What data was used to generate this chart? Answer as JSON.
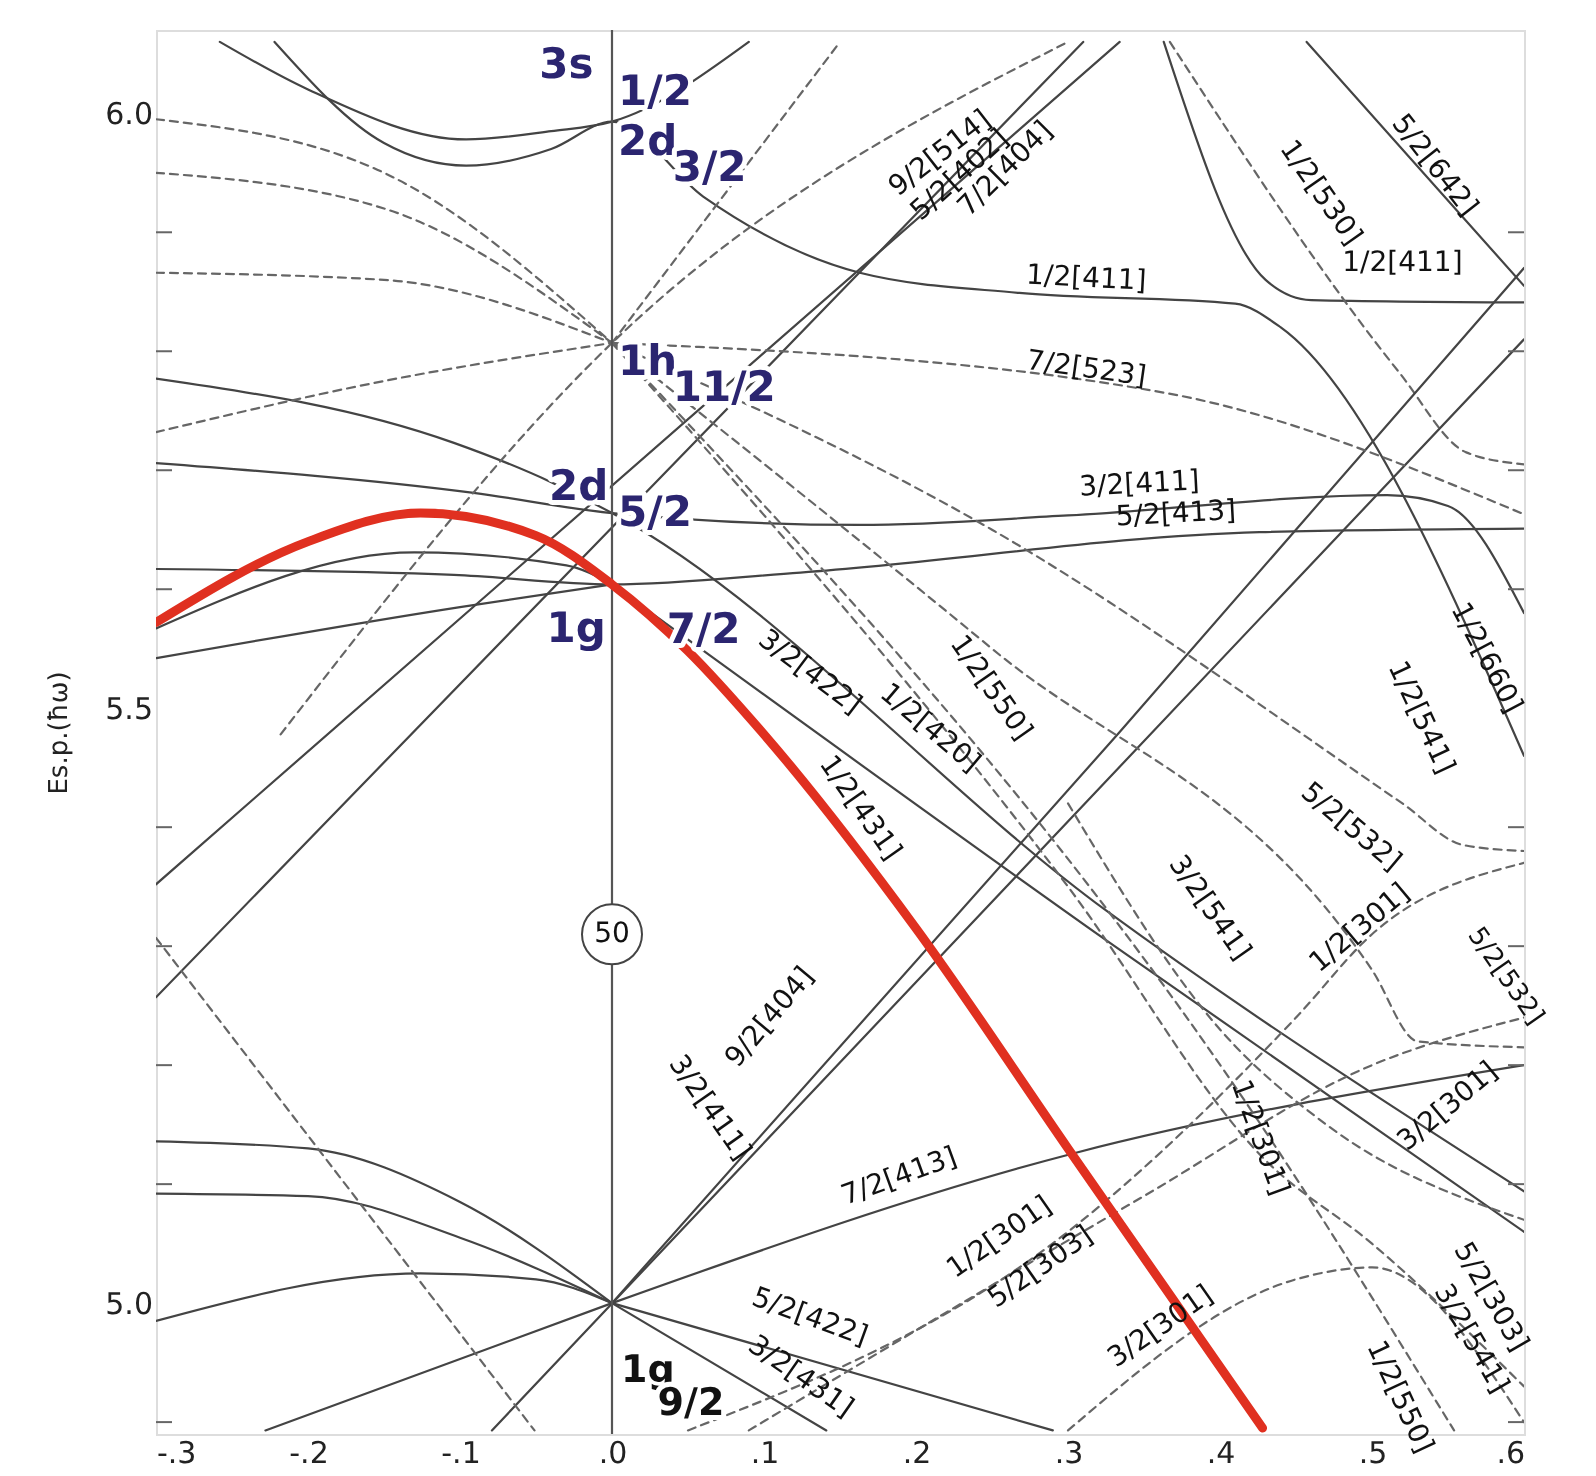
{
  "chart_data": {
    "type": "line",
    "ylabel": "Es.p.(ħω)",
    "grid": false,
    "xlim": [
      -0.3,
      0.6
    ],
    "ylim": [
      4.89,
      6.07
    ],
    "xticks": [
      {
        "value": -0.3,
        "label": "-.3"
      },
      {
        "value": -0.2,
        "label": "-.2"
      },
      {
        "value": -0.1,
        "label": "-.1"
      },
      {
        "value": 0,
        "label": ".0"
      },
      {
        "value": 0.1,
        "label": ".1"
      },
      {
        "value": 0.2,
        "label": ".2"
      },
      {
        "value": 0.3,
        "label": ".3"
      },
      {
        "value": 0.4,
        "label": ".4"
      },
      {
        "value": 0.5,
        "label": ".5"
      },
      {
        "value": 0.6,
        "label": ".6"
      }
    ],
    "yticks": [
      {
        "value": 6.0,
        "label": "6.0"
      },
      {
        "value": 5.9,
        "label": null
      },
      {
        "value": 5.8,
        "label": null
      },
      {
        "value": 5.7,
        "label": null
      },
      {
        "value": 5.6,
        "label": null
      },
      {
        "value": 5.5,
        "label": "5.5"
      },
      {
        "value": 5.4,
        "label": null
      },
      {
        "value": 5.3,
        "label": null
      },
      {
        "value": 5.2,
        "label": null
      },
      {
        "value": 5.1,
        "label": null
      },
      {
        "value": 5.0,
        "label": "5.0"
      },
      {
        "value": 4.9,
        "label": null
      }
    ],
    "ref_lines": [
      {
        "axis": "x",
        "value": 0,
        "color": "#555555",
        "line_style": "solid"
      }
    ],
    "series": [
      {
        "color": "#e03020",
        "line_style": "solid",
        "x": [
          -0.3,
          -0.2,
          -0.126,
          -0.05,
          0,
          0.05,
          0.1,
          0.2,
          0.3,
          0.428
        ],
        "values": [
          5.572,
          5.64,
          5.664,
          5.645,
          5.604,
          5.548,
          5.478,
          5.315,
          5.13,
          4.895
        ]
      },
      {
        "color": "#444444",
        "line_style": "solid",
        "x": [
          -0.258,
          -0.2,
          -0.096,
          -0.04,
          0,
          0.09
        ],
        "values": [
          6.06,
          6.02,
          5.978,
          5.985,
          5.993,
          6.06
        ]
      },
      {
        "color": "#444444",
        "line_style": "solid",
        "x": [
          -0.222,
          -0.15,
          -0.096,
          -0.04,
          0,
          0.06,
          0.163,
          0.268,
          0.41,
          0.44,
          0.6
        ],
        "values": [
          6.06,
          5.975,
          5.956,
          5.97,
          5.993,
          5.93,
          5.866,
          5.849,
          5.84,
          5.82,
          5.46
        ]
      },
      {
        "color": "#444444",
        "line_style": "solid",
        "x": [
          0.363,
          0.43,
          0.46,
          0.6
        ],
        "values": [
          6.06,
          5.86,
          5.843,
          5.841
        ]
      },
      {
        "color": "#444444",
        "line_style": "solid",
        "x": [
          0.457,
          0.6
        ],
        "values": [
          6.06,
          5.855
        ]
      },
      {
        "color": "#666666",
        "line_style": "dashed",
        "x": [
          0.367,
          0.518,
          0.562,
          0.6
        ],
        "values": [
          6.06,
          5.782,
          5.715,
          5.705
        ]
      },
      {
        "color": "#444444",
        "line_style": "solid",
        "x": [
          -0.3,
          -0.091,
          0,
          0.163,
          0.3,
          0.51,
          0.55,
          0.6
        ],
        "values": [
          5.706,
          5.681,
          5.664,
          5.654,
          5.662,
          5.679,
          5.67,
          5.58
        ]
      },
      {
        "color": "#444444",
        "line_style": "solid",
        "x": [
          -0.3,
          -0.104,
          0,
          0.124,
          0.426,
          0.6
        ],
        "values": [
          5.617,
          5.612,
          5.604,
          5.614,
          5.648,
          5.651
        ]
      },
      {
        "color": "#444444",
        "line_style": "solid",
        "x": [
          -0.3,
          -0.104,
          -0.04,
          0,
          0.325,
          0.6
        ],
        "values": [
          5.777,
          5.723,
          5.69,
          5.664,
          5.33,
          5.094
        ]
      },
      {
        "color": "#444444",
        "line_style": "solid",
        "x": [
          0,
          0.325,
          0.6
        ],
        "values": [
          5.604,
          5.305,
          5.06
        ]
      },
      {
        "color": "#444444",
        "line_style": "solid",
        "x": [
          -0.3,
          -0.13,
          -0.03,
          0
        ],
        "values": [
          5.567,
          5.631,
          5.62,
          5.604
        ]
      },
      {
        "color": "#444444",
        "line_style": "solid",
        "x": [
          -0.3,
          -0.1,
          0
        ],
        "values": [
          5.542,
          5.585,
          5.604
        ]
      },
      {
        "color": "#444444",
        "line_style": "solid",
        "x": [
          -0.3,
          0.334
        ],
        "values": [
          5.352,
          6.06
        ]
      },
      {
        "color": "#444444",
        "line_style": "solid",
        "x": [
          -0.3,
          0.31
        ],
        "values": [
          5.257,
          6.06
        ]
      },
      {
        "color": "#444444",
        "line_style": "solid",
        "x": [
          0,
          0.334,
          0.6
        ],
        "values": [
          5.0,
          5.48,
          5.87
        ]
      },
      {
        "color": "#444444",
        "line_style": "solid",
        "x": [
          -0.079,
          0.6
        ],
        "values": [
          4.893,
          5.81
        ]
      },
      {
        "color": "#444444",
        "line_style": "solid",
        "x": [
          0,
          0.304,
          0.6
        ],
        "values": [
          5.0,
          5.126,
          5.2
        ]
      },
      {
        "color": "#444444",
        "line_style": "solid",
        "x": [
          0,
          0.29
        ],
        "values": [
          5.0,
          4.893
        ]
      },
      {
        "color": "#444444",
        "line_style": "solid",
        "x": [
          0,
          0.141
        ],
        "values": [
          5.0,
          4.893
        ]
      },
      {
        "color": "#444444",
        "line_style": "solid",
        "x": [
          -0.3,
          -0.2,
          -0.1,
          0
        ],
        "values": [
          5.136,
          5.13,
          5.085,
          5.0
        ]
      },
      {
        "color": "#444444",
        "line_style": "solid",
        "x": [
          -0.3,
          -0.2,
          -0.1,
          0
        ],
        "values": [
          5.092,
          5.09,
          5.055,
          5.0
        ]
      },
      {
        "color": "#444444",
        "line_style": "solid",
        "x": [
          -0.3,
          -0.126,
          -0.05,
          0
        ],
        "values": [
          4.985,
          5.025,
          5.02,
          5.0
        ]
      },
      {
        "color": "#444444",
        "line_style": "solid",
        "x": [
          -0.228,
          0
        ],
        "values": [
          4.893,
          5.0
        ]
      },
      {
        "color": "#666666",
        "line_style": "dashed",
        "x": [
          -0.3,
          -0.15,
          0
        ],
        "values": [
          5.995,
          5.95,
          5.807
        ]
      },
      {
        "color": "#666666",
        "line_style": "dashed",
        "x": [
          -0.3,
          -0.15,
          0
        ],
        "values": [
          5.95,
          5.92,
          5.807
        ]
      },
      {
        "color": "#666666",
        "line_style": "dashed",
        "x": [
          -0.3,
          -0.15,
          0
        ],
        "values": [
          5.866,
          5.86,
          5.807
        ]
      },
      {
        "color": "#666666",
        "line_style": "dashed",
        "x": [
          -0.3,
          -0.15,
          0
        ],
        "values": [
          5.732,
          5.775,
          5.807
        ]
      },
      {
        "color": "#666666",
        "line_style": "dashed",
        "x": [
          0,
          0.364,
          0.6
        ],
        "values": [
          5.807,
          5.765,
          5.663
        ]
      },
      {
        "color": "#666666",
        "line_style": "dashed",
        "x": [
          0,
          0.43,
          0.554
        ],
        "values": [
          5.807,
          5.144,
          4.893
        ]
      },
      {
        "color": "#666666",
        "line_style": "dashed",
        "x": [
          0,
          0.3,
          0.43,
          0.5,
          0.6
        ],
        "values": [
          5.807,
          5.35,
          5.12,
          5.05,
          4.93
        ]
      },
      {
        "color": "#666666",
        "line_style": "dashed",
        "x": [
          0,
          0.25,
          0.5,
          0.53,
          0.6
        ],
        "values": [
          5.807,
          5.55,
          5.28,
          5.22,
          5.215
        ]
      },
      {
        "color": "#666666",
        "line_style": "dashed",
        "x": [
          0,
          0.25,
          0.52,
          0.56,
          0.6
        ],
        "values": [
          5.807,
          5.65,
          5.42,
          5.385,
          5.38
        ]
      },
      {
        "color": "#666666",
        "line_style": "dashed",
        "x": [
          -0.218,
          0,
          0.3
        ],
        "values": [
          5.478,
          5.807,
          6.06
        ]
      },
      {
        "color": "#666666",
        "line_style": "dashed",
        "x": [
          0,
          0.15
        ],
        "values": [
          5.807,
          6.06
        ]
      },
      {
        "color": "#666666",
        "line_style": "dashed",
        "x": [
          0.05,
          0.3,
          0.45,
          0.5,
          0.6
        ],
        "values": [
          4.893,
          5.06,
          5.24,
          5.31,
          5.37
        ]
      },
      {
        "color": "#666666",
        "line_style": "dashed",
        "x": [
          0.09,
          0.35,
          0.5,
          0.6
        ],
        "values": [
          4.893,
          5.09,
          5.2,
          5.24
        ]
      },
      {
        "color": "#666666",
        "line_style": "dashed",
        "x": [
          0.3,
          0.45,
          0.5,
          0.6
        ],
        "values": [
          4.893,
          5.02,
          5.03,
          4.9
        ]
      },
      {
        "color": "#666666",
        "line_style": "dashed",
        "x": [
          0.3,
          0.4,
          0.47,
          0.6
        ],
        "values": [
          5.42,
          5.23,
          5.15,
          5.07
        ]
      },
      {
        "color": "#666666",
        "line_style": "dashed",
        "x": [
          -0.3,
          -0.051
        ],
        "values": [
          5.307,
          4.893
        ]
      }
    ],
    "annotations": [
      "3s",
      "1/2",
      "2d",
      "3/2",
      "1h",
      "11/2",
      "2d",
      "5/2",
      "1g",
      "7/2",
      "1g",
      "9/2",
      "9/2[514]",
      "5/2[402]",
      "7/2[404]",
      "1/2[530]",
      "5/2[642]",
      "1/2[411]",
      "1/2[411]",
      "7/2[523]",
      "3/2[411]",
      "5/2[413]",
      "1/2[660]",
      "3/2[422]",
      "1/2[420]",
      "1/2[550]",
      "1/2[431]",
      "1/2[541]",
      "5/2[532]",
      "3/2[541]",
      "1/2[301]",
      "5/2[532]",
      "3/2[301]",
      "1/2[301]",
      "9/2[404]",
      "3/2[411]",
      "7/2[413]",
      "1/2[301]",
      "5/2[303]",
      "5/2[422]",
      "3/2[431]",
      "3/2[301]",
      "1/2[550]",
      "5/2[303]",
      "3/2[541]",
      "50"
    ]
  }
}
